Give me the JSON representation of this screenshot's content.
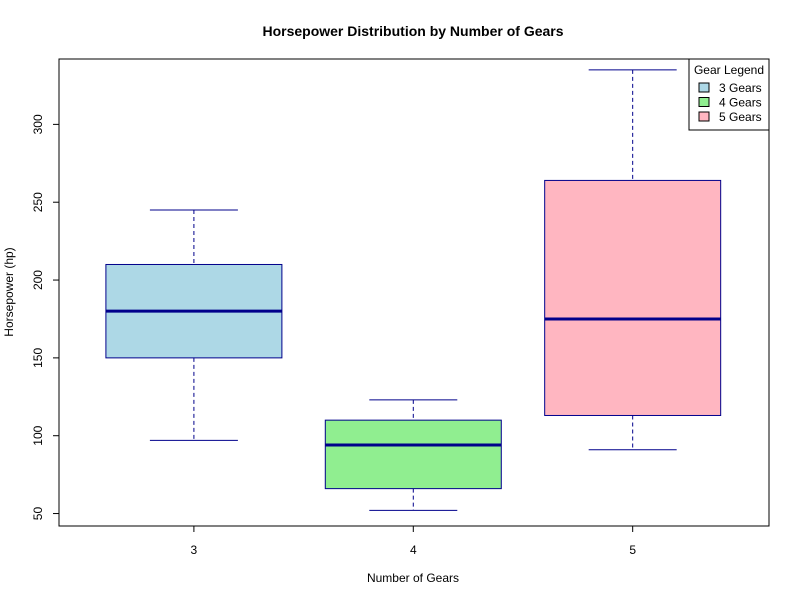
{
  "chart_data": {
    "type": "boxplot",
    "title": "Horsepower Distribution by Number of Gears",
    "xlabel": "Number of Gears",
    "ylabel": "Horsepower (hp)",
    "categories": [
      "3",
      "4",
      "5"
    ],
    "ylim": [
      42,
      342
    ],
    "yticks": [
      50,
      100,
      150,
      200,
      250,
      300
    ],
    "boxes": [
      {
        "category": "3",
        "whisker_low": 97,
        "q1": 150,
        "median": 180,
        "q3": 210,
        "whisker_high": 245,
        "fill": "#add8e6"
      },
      {
        "category": "4",
        "whisker_low": 52,
        "q1": 66,
        "median": 94,
        "q3": 110,
        "whisker_high": 123,
        "fill": "#90ee90"
      },
      {
        "category": "5",
        "whisker_low": 91,
        "q1": 113,
        "median": 175,
        "q3": 264,
        "whisker_high": 335,
        "fill": "#ffb6c1"
      }
    ],
    "line_color": "#00008b",
    "legend": {
      "title": "Gear Legend",
      "position": "top-right",
      "items": [
        {
          "label": "3 Gears",
          "color": "#add8e6"
        },
        {
          "label": "4 Gears",
          "color": "#90ee90"
        },
        {
          "label": "5 Gears",
          "color": "#ffb6c1"
        }
      ]
    },
    "grid": false
  }
}
